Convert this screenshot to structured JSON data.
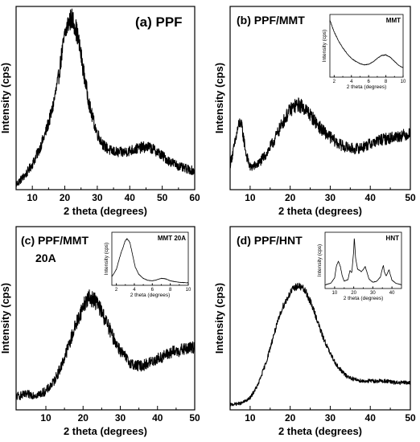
{
  "chart_data": [
    {
      "type": "line",
      "title": "(a) PPF",
      "xlabel": "2 theta (degrees)",
      "ylabel": "Intensity (cps)",
      "xlim": [
        5,
        60
      ],
      "xticks": [
        10,
        20,
        30,
        40,
        50,
        60
      ],
      "y_tick_labels": "none",
      "noise": "high",
      "x": [
        5,
        8,
        10,
        12,
        14,
        16,
        18,
        19,
        20,
        21,
        22,
        23,
        24,
        25,
        26,
        27,
        28,
        30,
        32,
        34,
        36,
        38,
        40,
        42,
        44,
        46,
        48,
        50,
        52,
        54,
        56,
        58,
        60
      ],
      "y": [
        0.0,
        0.06,
        0.12,
        0.2,
        0.3,
        0.43,
        0.62,
        0.76,
        0.88,
        0.95,
        0.98,
        0.95,
        0.87,
        0.76,
        0.64,
        0.53,
        0.43,
        0.3,
        0.23,
        0.2,
        0.19,
        0.19,
        0.2,
        0.21,
        0.22,
        0.22,
        0.2,
        0.17,
        0.14,
        0.12,
        0.1,
        0.09,
        0.08
      ],
      "inset": null
    },
    {
      "type": "line",
      "title": "(b) PPF/MMT",
      "xlabel": "2 theta (degrees)",
      "ylabel": "Intensity (cps)",
      "xlim": [
        5,
        50
      ],
      "xticks": [
        10,
        20,
        30,
        40,
        50
      ],
      "y_tick_labels": "none",
      "noise": "high",
      "x": [
        5,
        6,
        7,
        7.5,
        8,
        9,
        10,
        12,
        14,
        16,
        18,
        20,
        21,
        22,
        23,
        24,
        25,
        26,
        28,
        30,
        32,
        34,
        36,
        38,
        40,
        42,
        44,
        46,
        48,
        50
      ],
      "y": [
        0.12,
        0.22,
        0.34,
        0.37,
        0.33,
        0.18,
        0.1,
        0.12,
        0.18,
        0.26,
        0.36,
        0.44,
        0.46,
        0.47,
        0.46,
        0.44,
        0.41,
        0.38,
        0.32,
        0.28,
        0.24,
        0.22,
        0.21,
        0.22,
        0.24,
        0.26,
        0.27,
        0.28,
        0.29,
        0.3
      ],
      "inset": {
        "title": "MMT",
        "xlabel": "2 theta (degrees)",
        "ylabel": "Intensity (cps)",
        "xlim": [
          1.5,
          10
        ],
        "xticks": [
          2,
          4,
          6,
          8,
          10
        ],
        "noise": "low",
        "x": [
          1.5,
          2,
          2.5,
          3,
          3.5,
          4,
          4.5,
          5,
          5.5,
          6,
          6.5,
          7,
          7.5,
          8,
          8.5,
          9,
          9.5,
          10
        ],
        "y": [
          0.95,
          0.75,
          0.6,
          0.48,
          0.38,
          0.3,
          0.25,
          0.21,
          0.19,
          0.2,
          0.24,
          0.3,
          0.35,
          0.36,
          0.32,
          0.25,
          0.18,
          0.14
        ]
      }
    },
    {
      "type": "line",
      "title": "(c) PPF/MMT",
      "subtitle": "20A",
      "xlabel": "2 theta (degrees)",
      "ylabel": "Intensity (cps)",
      "xlim": [
        2,
        50
      ],
      "xticks": [
        10,
        20,
        30,
        40,
        50
      ],
      "y_tick_labels": "none",
      "noise": "high",
      "x": [
        2,
        5,
        8,
        10,
        12,
        14,
        16,
        18,
        20,
        21,
        22,
        23,
        24,
        25,
        26,
        27,
        28,
        30,
        32,
        34,
        36,
        38,
        40,
        42,
        44,
        46,
        48,
        50
      ],
      "y": [
        0.05,
        0.06,
        0.06,
        0.08,
        0.13,
        0.22,
        0.34,
        0.47,
        0.58,
        0.62,
        0.63,
        0.62,
        0.59,
        0.55,
        0.5,
        0.45,
        0.4,
        0.32,
        0.26,
        0.23,
        0.23,
        0.25,
        0.27,
        0.29,
        0.31,
        0.32,
        0.33,
        0.34
      ],
      "inset": {
        "title": "MMT 20A",
        "xlabel": "2 theta (degrees)",
        "ylabel": "Intensity (cps)",
        "xlim": [
          1.5,
          10
        ],
        "xticks": [
          2,
          4,
          6,
          8,
          10
        ],
        "noise": "low",
        "x": [
          1.5,
          2,
          2.5,
          3,
          3.2,
          3.5,
          3.8,
          4.1,
          4.5,
          5,
          5.5,
          6,
          6.5,
          7,
          7.5,
          8,
          9,
          10
        ],
        "y": [
          0.15,
          0.3,
          0.62,
          0.88,
          0.92,
          0.85,
          0.6,
          0.35,
          0.2,
          0.12,
          0.08,
          0.07,
          0.09,
          0.12,
          0.11,
          0.07,
          0.04,
          0.03
        ]
      }
    },
    {
      "type": "line",
      "title": "(d) PPF/HNT",
      "xlabel": "2 theta (degrees)",
      "ylabel": "Intensity (cps)",
      "xlim": [
        5,
        50
      ],
      "xticks": [
        10,
        20,
        30,
        40,
        50
      ],
      "y_tick_labels": "none",
      "noise": "medium",
      "x": [
        5,
        8,
        10,
        12,
        14,
        16,
        18,
        20,
        21,
        22,
        23,
        24,
        25,
        26,
        27,
        28,
        30,
        32,
        34,
        36,
        38,
        40,
        42,
        44,
        46,
        48,
        50
      ],
      "y": [
        0.0,
        0.01,
        0.04,
        0.12,
        0.25,
        0.42,
        0.57,
        0.66,
        0.69,
        0.7,
        0.69,
        0.66,
        0.61,
        0.55,
        0.48,
        0.41,
        0.3,
        0.22,
        0.17,
        0.15,
        0.14,
        0.14,
        0.14,
        0.14,
        0.13,
        0.13,
        0.13
      ],
      "inset": {
        "title": "HNT",
        "xlabel": "2 theta (degrees)",
        "ylabel": "Intensity (cps)",
        "xlim": [
          5,
          45
        ],
        "xticks": [
          10,
          20,
          30,
          40
        ],
        "noise": "low",
        "x": [
          5,
          8,
          10,
          11,
          12,
          13,
          14,
          15,
          17,
          18,
          19,
          19.5,
          20,
          20.3,
          21,
          22,
          24,
          25,
          26,
          27,
          28,
          30,
          32,
          34,
          35,
          35.5,
          36,
          37,
          38,
          38.5,
          39,
          40,
          42,
          45
        ],
        "y": [
          0.05,
          0.08,
          0.18,
          0.42,
          0.5,
          0.4,
          0.22,
          0.12,
          0.15,
          0.32,
          0.28,
          0.5,
          0.7,
          0.96,
          0.55,
          0.35,
          0.3,
          0.34,
          0.4,
          0.28,
          0.16,
          0.1,
          0.12,
          0.2,
          0.36,
          0.42,
          0.3,
          0.22,
          0.3,
          0.34,
          0.26,
          0.14,
          0.08,
          0.05
        ]
      }
    }
  ]
}
